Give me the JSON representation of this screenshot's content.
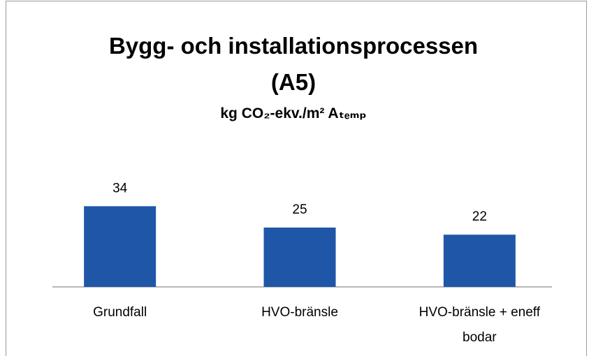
{
  "chart_data": {
    "type": "bar",
    "title": "Bygg- och installationsprocessen (A5)",
    "subtitle": "kg CO₂-ekv./m² Aₜₑₘₚ",
    "categories": [
      "Grundfall",
      "HVO-bränsle",
      "HVO-bränsle + eneff bodar"
    ],
    "values": [
      34,
      25,
      22
    ],
    "color": "#1f56a8"
  }
}
